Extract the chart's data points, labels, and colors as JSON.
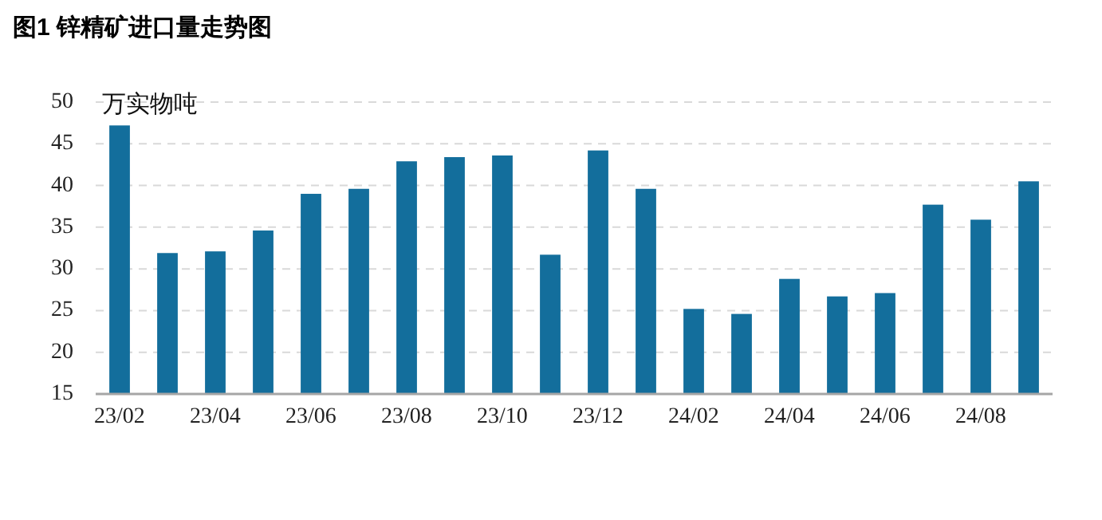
{
  "chart_data": {
    "type": "bar",
    "title": "图1 锌精矿进口量走势图",
    "ylabel": "万实物吨",
    "categories": [
      "23/02",
      null,
      "23/04",
      null,
      "23/06",
      null,
      "23/08",
      null,
      "23/10",
      null,
      "23/12",
      null,
      "24/02",
      null,
      "24/04",
      null,
      "24/06",
      null,
      "24/08",
      null
    ],
    "values": [
      47.2,
      31.9,
      32.1,
      34.6,
      39.0,
      39.6,
      42.9,
      43.4,
      43.6,
      31.7,
      44.2,
      39.6,
      25.2,
      24.6,
      28.8,
      26.7,
      27.1,
      37.7,
      35.9,
      40.5
    ],
    "color": "#136e9c",
    "ylim": [
      15,
      50
    ],
    "yticks": [
      15,
      20,
      25,
      30,
      35,
      40,
      45,
      50
    ],
    "grid": "y"
  }
}
